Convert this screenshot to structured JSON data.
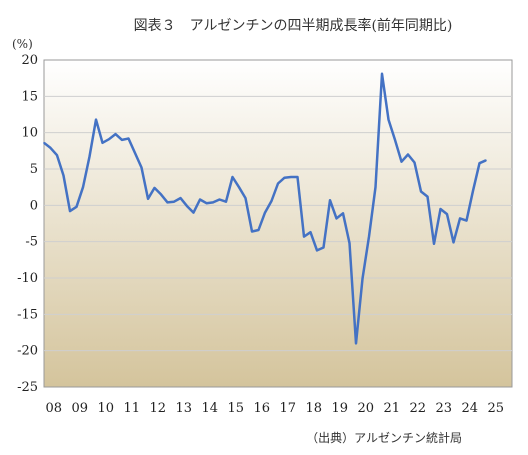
{
  "chart_data": {
    "type": "line",
    "title": "図表３　アルゼンチンの四半期成長率(前年同期比)",
    "ylabel": "(%)",
    "source": "（出典）アルゼンチン統計局",
    "ylim": [
      -25,
      20
    ],
    "yticks": [
      20,
      15,
      10,
      5,
      0,
      -5,
      -10,
      -15,
      -20,
      -25
    ],
    "x_tick_labels": [
      "08",
      "09",
      "10",
      "11",
      "12",
      "13",
      "14",
      "15",
      "16",
      "17",
      "18",
      "19",
      "20",
      "21",
      "22",
      "23",
      "24",
      "25"
    ],
    "grid": true,
    "series": [
      {
        "values": [
          8.6,
          7.9,
          6.9,
          4.1,
          -0.8,
          -0.2,
          2.5,
          6.7,
          11.8,
          8.6,
          9.1,
          9.8,
          9.0,
          9.2,
          7.2,
          5.2,
          0.9,
          2.4,
          1.5,
          0.4,
          0.5,
          1.0,
          -0.1,
          -1.0,
          0.8,
          0.3,
          0.4,
          0.8,
          0.5,
          3.9,
          2.5,
          1.0,
          -3.6,
          -3.4,
          -1.0,
          0.6,
          3.0,
          3.8,
          3.9,
          3.9,
          -4.3,
          -3.7,
          -6.2,
          -5.8,
          0.7,
          -1.8,
          -1.1,
          -5.2,
          -19.0,
          -10.1,
          -4.3,
          2.5,
          18.1,
          11.8,
          9.0,
          6.0,
          7.0,
          5.9,
          1.9,
          1.2,
          -5.3,
          -0.5,
          -1.2,
          -5.1,
          -1.8,
          -2.1,
          2.0,
          5.8,
          6.2
        ]
      }
    ]
  },
  "colors": {
    "line": "#4472C4",
    "plot_bg_top": "#ffffff",
    "plot_bg_bottom": "#d4c49c"
  }
}
